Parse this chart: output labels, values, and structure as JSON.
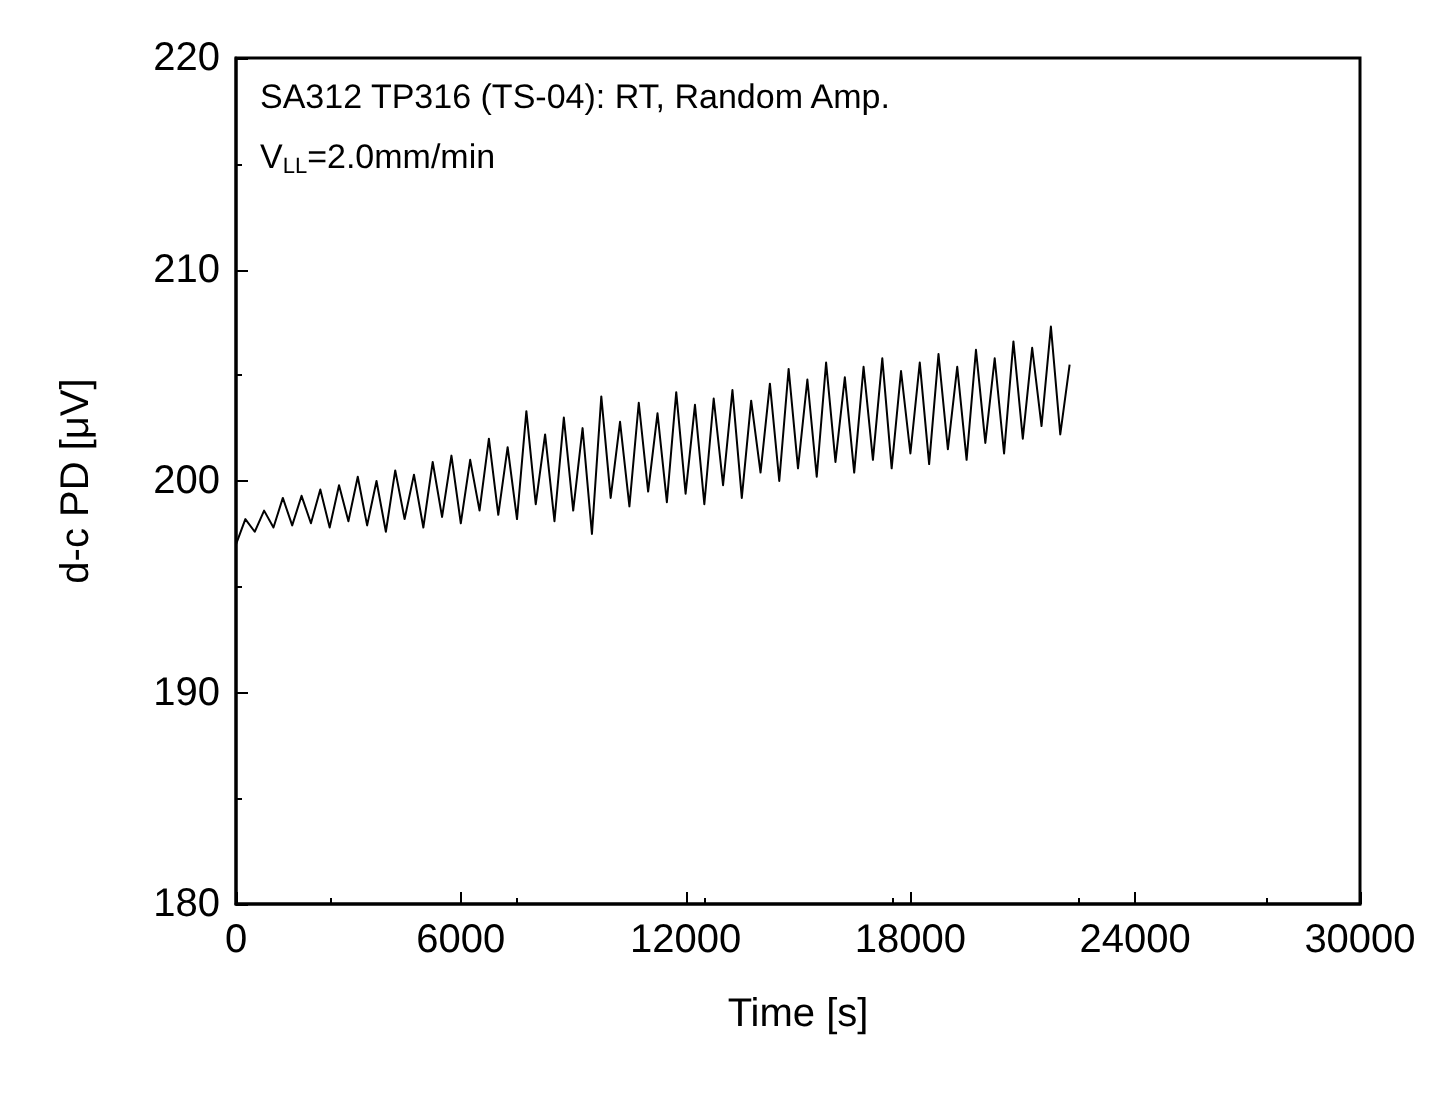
{
  "chart_data": {
    "type": "line",
    "xlabel": "Time [s]",
    "ylabel": "d-c PD [μV]",
    "annotations": [
      "SA312 TP316 (TS-04): RT, Random Amp.",
      "V$_{LL}$=2.0mm/min"
    ],
    "xlim": [
      0,
      30000
    ],
    "xticks": [
      0,
      6000,
      12000,
      18000,
      24000,
      30000
    ],
    "ylim": [
      180,
      220
    ],
    "yticks": [
      180,
      190,
      200,
      210,
      220
    ],
    "grid": false,
    "marker": "none",
    "line_style": "solid",
    "x": [
      0,
      250,
      500,
      750,
      1000,
      1250,
      1500,
      1750,
      2000,
      2250,
      2500,
      2750,
      3000,
      3250,
      3500,
      3750,
      4000,
      4250,
      4500,
      4750,
      5000,
      5250,
      5500,
      5750,
      6000,
      6250,
      6500,
      6750,
      7000,
      7250,
      7500,
      7750,
      8000,
      8250,
      8500,
      8750,
      9000,
      9250,
      9500,
      9750,
      10000,
      10250,
      10500,
      10750,
      11000,
      11250,
      11500,
      11750,
      12000,
      12250,
      12500,
      12750,
      13000,
      13250,
      13500,
      13750,
      14000,
      14250,
      14500,
      14750,
      15000,
      15250,
      15500,
      15750,
      16000,
      16250,
      16500,
      16750,
      17000,
      17250,
      17500,
      17750,
      18000,
      18250,
      18500,
      18750,
      19000,
      19250,
      19500,
      19750,
      20000,
      20250,
      20500,
      20750,
      21000,
      21250,
      21500,
      21750,
      22000,
      22250
    ],
    "series": [
      {
        "color": "#000000",
        "values": [
          197.0,
          198.2,
          197.6,
          198.6,
          197.8,
          199.2,
          197.9,
          199.3,
          198.0,
          199.6,
          197.8,
          199.8,
          198.1,
          200.2,
          197.9,
          200.0,
          197.6,
          200.5,
          198.2,
          200.3,
          197.8,
          200.9,
          198.3,
          201.2,
          198.0,
          201.0,
          198.6,
          202.0,
          198.4,
          201.6,
          198.2,
          203.3,
          198.9,
          202.2,
          198.1,
          203.0,
          198.6,
          202.5,
          197.5,
          204.0,
          199.2,
          202.8,
          198.8,
          203.7,
          199.5,
          203.2,
          199.0,
          204.2,
          199.4,
          203.6,
          198.9,
          203.9,
          199.8,
          204.3,
          199.2,
          203.8,
          200.4,
          204.6,
          200.0,
          205.3,
          200.6,
          204.8,
          200.2,
          205.6,
          200.9,
          204.9,
          200.4,
          205.4,
          201.0,
          205.8,
          200.6,
          205.2,
          201.3,
          205.6,
          200.8,
          206.0,
          201.5,
          205.4,
          201.0,
          206.2,
          201.8,
          205.8,
          201.3,
          206.6,
          202.0,
          206.3,
          202.6,
          207.3,
          202.2,
          205.5
        ]
      }
    ]
  }
}
